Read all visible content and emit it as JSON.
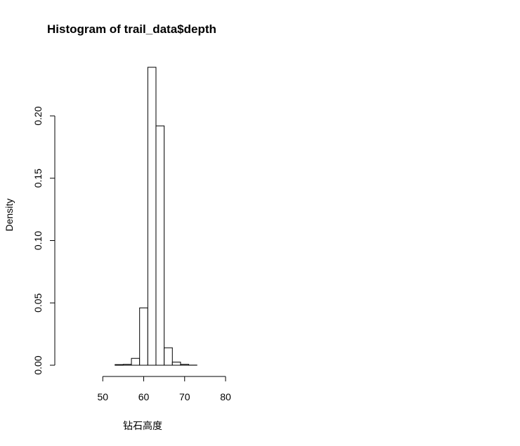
{
  "chart_data": {
    "type": "bar",
    "title": "Histogram of trail_data$depth",
    "xlabel": "钻石高度",
    "ylabel": "Density",
    "xlim": [
      40,
      80
    ],
    "ylim": [
      0,
      0.24
    ],
    "x_ticks": [
      50,
      60,
      70,
      80
    ],
    "y_ticks": [
      0.0,
      0.05,
      0.1,
      0.15,
      0.2
    ],
    "y_tick_labels": [
      "0.00",
      "0.05",
      "0.10",
      "0.15",
      "0.20"
    ],
    "bin_edges": [
      43,
      45,
      47,
      49,
      51,
      53,
      55,
      57,
      59,
      61,
      63,
      65,
      67,
      69,
      71,
      73,
      75,
      77,
      79
    ],
    "values": [
      0.0,
      0.0,
      0.0,
      0.0,
      0.0,
      0.0005,
      0.0007,
      0.0055,
      0.046,
      0.239,
      0.192,
      0.014,
      0.0025,
      0.0007,
      0.0001,
      0.0,
      0.0,
      0.0
    ],
    "grid": false,
    "legend": "none"
  }
}
